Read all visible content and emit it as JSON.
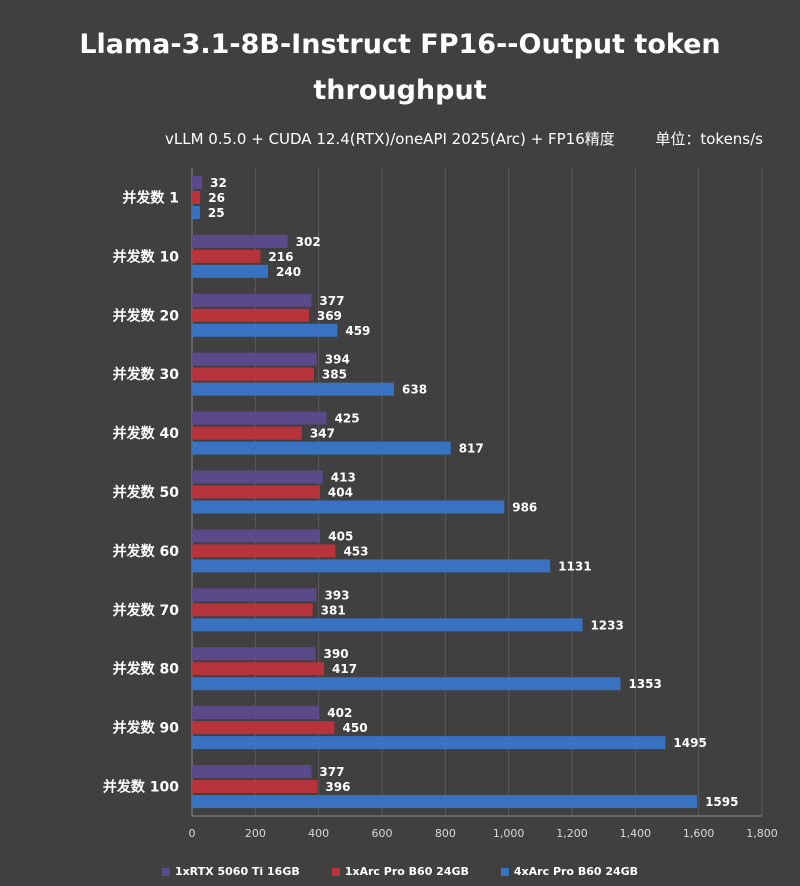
{
  "chart_data": {
    "type": "bar",
    "orientation": "horizontal",
    "title": "Llama-3.1-8B-Instruct FP16--Output token throughput",
    "subtitle": "vLLM 0.5.0 + CUDA 12.4(RTX)/oneAPI 2025(Arc) + FP16精度",
    "unit_label": "单位：tokens/s",
    "categories": [
      "并发数 1",
      "并发数 10",
      "并发数 20",
      "并发数 30",
      "并发数 40",
      "并发数 50",
      "并发数 60",
      "并发数 70",
      "并发数 80",
      "并发数 90",
      "并发数 100"
    ],
    "series": [
      {
        "name": "1xRTX 5060 Ti 16GB",
        "color": "#5b4a8a",
        "values": [
          32,
          302,
          377,
          394,
          425,
          413,
          405,
          393,
          390,
          402,
          377
        ]
      },
      {
        "name": "1xArc Pro B60 24GB",
        "color": "#b8343c",
        "values": [
          26,
          216,
          369,
          385,
          347,
          404,
          453,
          381,
          417,
          450,
          396
        ]
      },
      {
        "name": "4xArc Pro B60 24GB",
        "color": "#3a72c2",
        "values": [
          25,
          240,
          459,
          638,
          817,
          986,
          1131,
          1233,
          1353,
          1495,
          1595
        ]
      }
    ],
    "xlim": [
      0,
      1800
    ],
    "xticks": [
      0,
      200,
      400,
      600,
      800,
      1000,
      1200,
      1400,
      1600,
      1800
    ],
    "xtick_labels": [
      "0",
      "200",
      "400",
      "600",
      "800",
      "1,000",
      "1,200",
      "1,400",
      "1,600",
      "1,800"
    ],
    "grid": true,
    "legend_position": "bottom"
  }
}
